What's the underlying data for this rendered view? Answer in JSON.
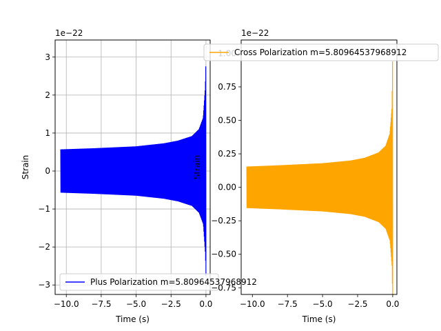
{
  "chart_data": [
    {
      "type": "line",
      "xlabel": "Time (s)",
      "ylabel": "Strain",
      "offset_label": "1e−22",
      "xlim": [
        -10.8,
        0.3
      ],
      "ylim": [
        -3.25,
        3.45
      ],
      "xticks": [
        -10.0,
        -7.5,
        -5.0,
        -2.5,
        0.0
      ],
      "xtick_labels": [
        "−10.0",
        "−7.5",
        "−5.0",
        "−2.5",
        "0.0"
      ],
      "yticks": [
        -3,
        -2,
        -1,
        0,
        1,
        2,
        3
      ],
      "ytick_labels": [
        "−3",
        "−2",
        "−1",
        "0",
        "1",
        "2",
        "3"
      ],
      "grid": true,
      "legend_position": "lower-left",
      "series": [
        {
          "name": "Plus Polarization m=5.80964537968912",
          "color": "#0000ff",
          "t_start": -10.4,
          "t_end": 0.0,
          "envelope_t": [
            -10.4,
            -8.0,
            -5.0,
            -3.0,
            -2.0,
            -1.0,
            -0.5,
            -0.2,
            -0.05,
            0.0
          ],
          "envelope_amp": [
            0.57,
            0.6,
            0.65,
            0.73,
            0.8,
            0.92,
            1.1,
            1.4,
            2.2,
            3.0
          ]
        }
      ]
    },
    {
      "type": "line",
      "xlabel": "Time (s)",
      "ylabel": "Strain",
      "offset_label": "1e−22",
      "xlim": [
        -10.8,
        0.3
      ],
      "ylim": [
        -0.8,
        1.1
      ],
      "xticks": [
        -10.0,
        -7.5,
        -5.0,
        -2.5,
        0.0
      ],
      "xtick_labels": [
        "−10.0",
        "−7.5",
        "−5.0",
        "−2.5",
        "0.0"
      ],
      "yticks": [
        -0.75,
        -0.5,
        -0.25,
        0.0,
        0.25,
        0.5,
        0.75,
        1.0
      ],
      "ytick_labels": [
        "−0.75",
        "−0.50",
        "−0.25",
        "0.00",
        "0.25",
        "0.50",
        "0.75",
        "1.00"
      ],
      "grid": false,
      "legend_position": "upper-right",
      "series": [
        {
          "name": "Cross Polarization m=5.80964537968912",
          "color": "#ffa500",
          "t_start": -10.4,
          "t_end": 0.0,
          "envelope_t": [
            -10.4,
            -8.0,
            -5.0,
            -3.0,
            -2.0,
            -1.0,
            -0.5,
            -0.2,
            -0.05,
            0.0
          ],
          "envelope_amp": [
            0.155,
            0.165,
            0.18,
            0.2,
            0.22,
            0.26,
            0.31,
            0.4,
            0.6,
            1.05
          ]
        }
      ]
    }
  ]
}
